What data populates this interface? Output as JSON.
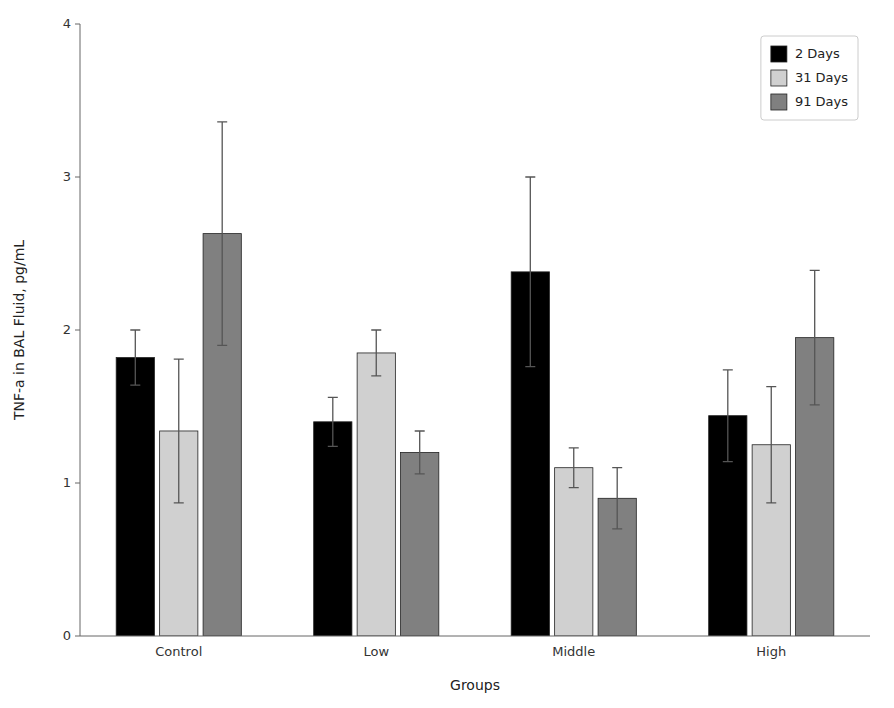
{
  "chart_data": {
    "type": "bar",
    "categories": [
      "Control",
      "Low",
      "Middle",
      "High"
    ],
    "series": [
      {
        "name": "2 Days",
        "color": "#000000",
        "values": [
          1.82,
          1.4,
          2.38,
          1.44
        ],
        "errors": [
          0.18,
          0.16,
          0.62,
          0.3
        ]
      },
      {
        "name": "31 Days",
        "color": "#d0d0d0",
        "values": [
          1.34,
          1.85,
          1.1,
          1.25
        ],
        "errors": [
          0.47,
          0.15,
          0.13,
          0.38
        ]
      },
      {
        "name": "91 Days",
        "color": "#808080",
        "values": [
          2.63,
          1.2,
          0.9,
          1.95
        ],
        "errors": [
          0.73,
          0.14,
          0.2,
          0.44
        ]
      }
    ],
    "xlabel": "Groups",
    "ylabel": "TNF-a in BAL Fluid, pg/mL",
    "ylim": [
      0,
      4
    ],
    "yticks": [
      0,
      1,
      2,
      3,
      4
    ],
    "legend": "upper right",
    "grid": false
  }
}
